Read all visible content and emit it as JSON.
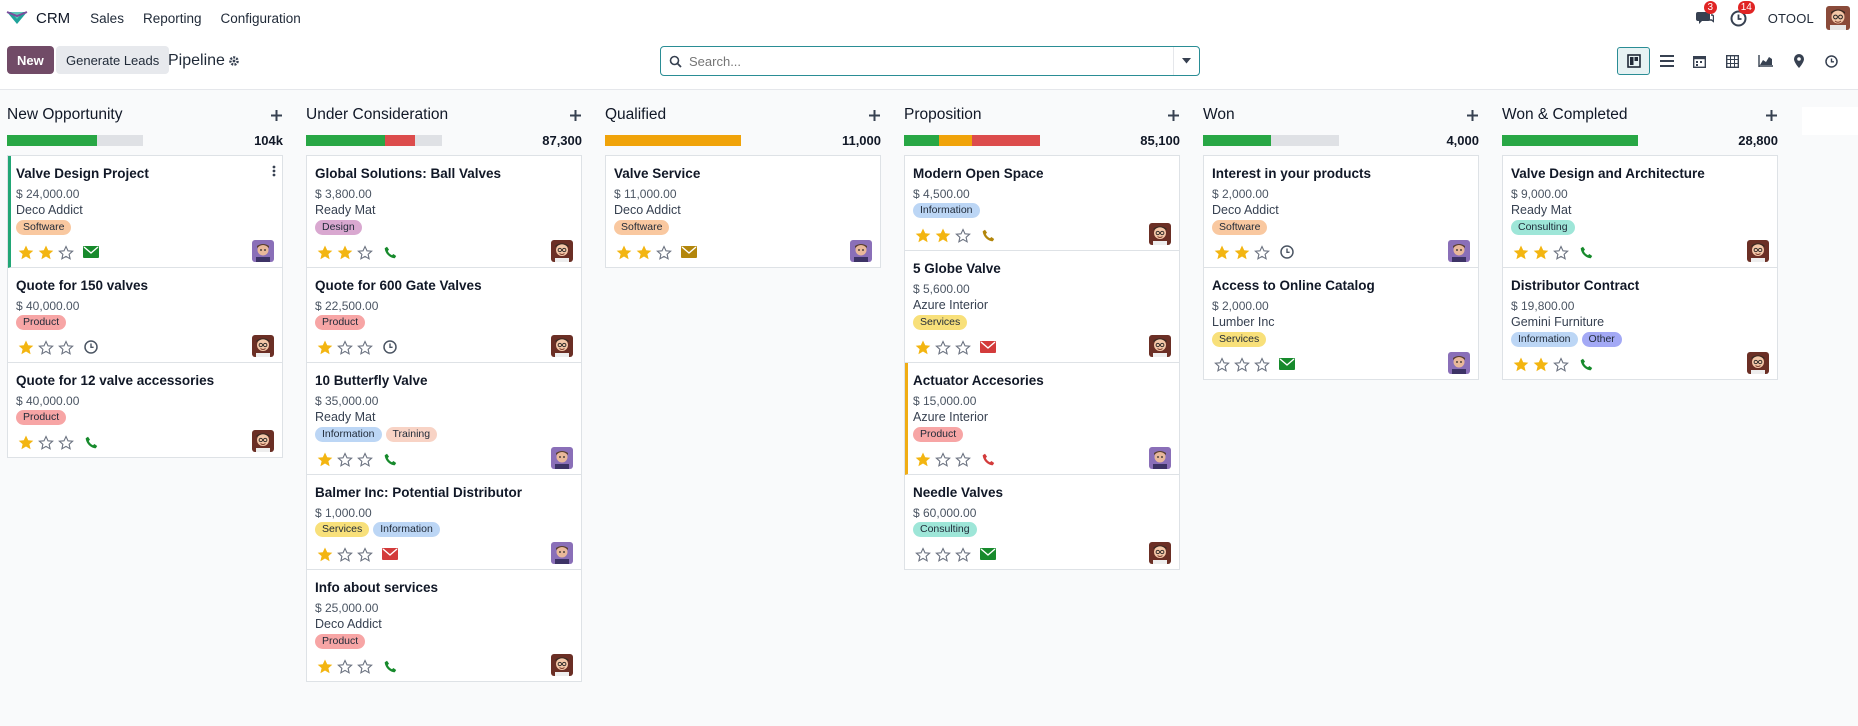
{
  "nav": {
    "app_name": "CRM",
    "menu": [
      "Sales",
      "Reporting",
      "Configuration"
    ],
    "messages_count": "3",
    "activities_count": "14",
    "company": "OTOOL"
  },
  "control": {
    "new_label": "New",
    "generate_label": "Generate Leads",
    "title": "Pipeline",
    "search_placeholder": "Search..."
  },
  "colors": {
    "green": "#28a745",
    "orange": "#f0a30a",
    "red": "#dc4c4c",
    "grey": "#dfe1e5",
    "brand": "#714b67",
    "accent": "#2a8d95"
  },
  "columns": [
    {
      "title": "New Opportunity",
      "total": "104k",
      "progress": [
        {
          "color": "green",
          "pct": 66
        }
      ],
      "cards": [
        {
          "title": "Valve Design Project",
          "amount": "$ 24,000.00",
          "company": "Deco Addict",
          "tags": [
            {
              "label": "Software",
              "color": "#f9c8a0"
            }
          ],
          "stars": 2,
          "activity": "envelope-green",
          "avatar": "purple",
          "edge": "green",
          "menu": true
        },
        {
          "title": "Quote for 150 valves",
          "amount": "$ 40,000.00",
          "company": "",
          "tags": [
            {
              "label": "Product",
              "color": "#f7a5a5"
            }
          ],
          "stars": 1,
          "activity": "clock",
          "avatar": "dark"
        },
        {
          "title": "Quote for 12 valve accessories",
          "amount": "$ 40,000.00",
          "company": "",
          "tags": [
            {
              "label": "Product",
              "color": "#f7a5a5"
            }
          ],
          "stars": 1,
          "activity": "phone-green",
          "avatar": "dark"
        }
      ]
    },
    {
      "title": "Under Consideration",
      "total": "87,300",
      "progress": [
        {
          "color": "green",
          "pct": 58
        },
        {
          "color": "red",
          "pct": 22
        }
      ],
      "cards": [
        {
          "title": "Global Solutions: Ball Valves",
          "amount": "$ 3,800.00",
          "company": "Ready Mat",
          "tags": [
            {
              "label": "Design",
              "color": "#d9a8d0"
            }
          ],
          "stars": 2,
          "activity": "phone-green",
          "avatar": "dark"
        },
        {
          "title": "Quote for 600 Gate Valves",
          "amount": "$ 22,500.00",
          "company": "",
          "tags": [
            {
              "label": "Product",
              "color": "#f7a5a5"
            }
          ],
          "stars": 1,
          "activity": "clock",
          "avatar": "dark"
        },
        {
          "title": "10 Butterfly Valve",
          "amount": "$ 35,000.00",
          "company": "Ready Mat",
          "tags": [
            {
              "label": "Information",
              "color": "#bcd6f5"
            },
            {
              "label": "Training",
              "color": "#f8d3c5"
            }
          ],
          "stars": 1,
          "activity": "phone-green",
          "avatar": "purple"
        },
        {
          "title": "Balmer Inc: Potential Distributor",
          "amount": "$ 1,000.00",
          "company": "",
          "tags": [
            {
              "label": "Services",
              "color": "#f8e07a"
            },
            {
              "label": "Information",
              "color": "#bcd6f5"
            }
          ],
          "stars": 1,
          "activity": "envelope-red",
          "avatar": "purple"
        },
        {
          "title": "Info about services",
          "amount": "$ 25,000.00",
          "company": "Deco Addict",
          "tags": [
            {
              "label": "Product",
              "color": "#f7a5a5"
            }
          ],
          "stars": 1,
          "activity": "phone-green",
          "avatar": "dark"
        }
      ]
    },
    {
      "title": "Qualified",
      "total": "11,000",
      "progress": [
        {
          "color": "orange",
          "pct": 100
        }
      ],
      "cards": [
        {
          "title": "Valve Service",
          "amount": "$ 11,000.00",
          "company": "Deco Addict",
          "tags": [
            {
              "label": "Software",
              "color": "#f9c8a0"
            }
          ],
          "stars": 2,
          "activity": "envelope-orange",
          "avatar": "purple"
        }
      ]
    },
    {
      "title": "Proposition",
      "total": "85,100",
      "progress": [
        {
          "color": "green",
          "pct": 26
        },
        {
          "color": "orange",
          "pct": 24
        },
        {
          "color": "red",
          "pct": 50
        }
      ],
      "cards": [
        {
          "title": "Modern Open Space",
          "amount": "$ 4,500.00",
          "company": "",
          "tags": [
            {
              "label": "Information",
              "color": "#bcd6f5"
            }
          ],
          "stars": 2,
          "activity": "phone-orange",
          "avatar": "dark"
        },
        {
          "title": "5 Globe Valve",
          "amount": "$ 5,600.00",
          "company": "Azure Interior",
          "tags": [
            {
              "label": "Services",
              "color": "#f8e07a"
            }
          ],
          "stars": 1,
          "activity": "envelope-red",
          "avatar": "dark"
        },
        {
          "title": "Actuator Accesories",
          "amount": "$ 15,000.00",
          "company": "Azure Interior",
          "tags": [
            {
              "label": "Product",
              "color": "#f7a5a5"
            }
          ],
          "stars": 1,
          "activity": "phone-red",
          "avatar": "purple",
          "edge": "orange"
        },
        {
          "title": "Needle Valves",
          "amount": "$ 60,000.00",
          "company": "",
          "tags": [
            {
              "label": "Consulting",
              "color": "#9ee6d8"
            }
          ],
          "stars": 0,
          "activity": "envelope-green",
          "avatar": "dark"
        }
      ]
    },
    {
      "title": "Won",
      "total": "4,000",
      "progress": [
        {
          "color": "green",
          "pct": 50
        }
      ],
      "cards": [
        {
          "title": "Interest in your products",
          "amount": "$ 2,000.00",
          "company": "Deco Addict",
          "tags": [
            {
              "label": "Software",
              "color": "#f9c8a0"
            }
          ],
          "stars": 2,
          "activity": "clock",
          "avatar": "purple"
        },
        {
          "title": "Access to Online Catalog",
          "amount": "$ 2,000.00",
          "company": "Lumber Inc",
          "tags": [
            {
              "label": "Services",
              "color": "#f8e07a"
            }
          ],
          "stars": 0,
          "activity": "envelope-green",
          "avatar": "purple"
        }
      ]
    },
    {
      "title": "Won & Completed",
      "total": "28,800",
      "progress": [
        {
          "color": "green",
          "pct": 100
        }
      ],
      "cards": [
        {
          "title": "Valve Design and Architecture",
          "amount": "$ 9,000.00",
          "company": "Ready Mat",
          "tags": [
            {
              "label": "Consulting",
              "color": "#9ee6d8"
            }
          ],
          "stars": 2,
          "activity": "phone-green",
          "avatar": "dark"
        },
        {
          "title": "Distributor Contract",
          "amount": "$ 19,800.00",
          "company": "Gemini Furniture",
          "tags": [
            {
              "label": "Information",
              "color": "#bcd6f5"
            },
            {
              "label": "Other",
              "color": "#a3a9f5"
            }
          ],
          "stars": 2,
          "activity": "phone-green",
          "avatar": "dark"
        }
      ]
    }
  ]
}
